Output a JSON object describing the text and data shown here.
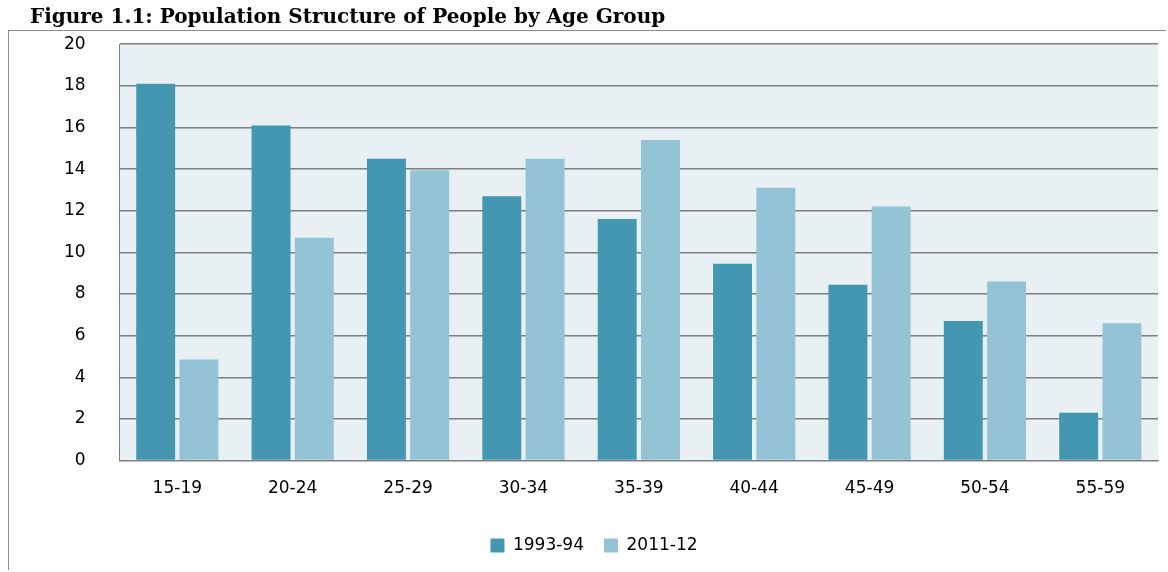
{
  "chart_data": {
    "type": "bar",
    "title": "Figure 1.1: Population Structure of People by Age Group",
    "categories": [
      "15-19",
      "20-24",
      "25-29",
      "30-34",
      "35-39",
      "40-44",
      "45-49",
      "50-54",
      "55-59"
    ],
    "series": [
      {
        "name": "1993-94",
        "color": "#4397b0",
        "values": [
          18.1,
          16.1,
          14.5,
          12.7,
          11.6,
          9.45,
          8.45,
          6.7,
          2.3
        ]
      },
      {
        "name": "2011-12",
        "color": "#93c3d5",
        "values": [
          4.85,
          10.7,
          13.95,
          14.5,
          15.4,
          13.1,
          12.2,
          8.6,
          6.6
        ]
      }
    ],
    "ylim": [
      0,
      20
    ],
    "yticks": [
      0,
      2,
      4,
      6,
      8,
      10,
      12,
      14,
      16,
      18,
      20
    ],
    "grid": "y",
    "legend": "bottom"
  }
}
